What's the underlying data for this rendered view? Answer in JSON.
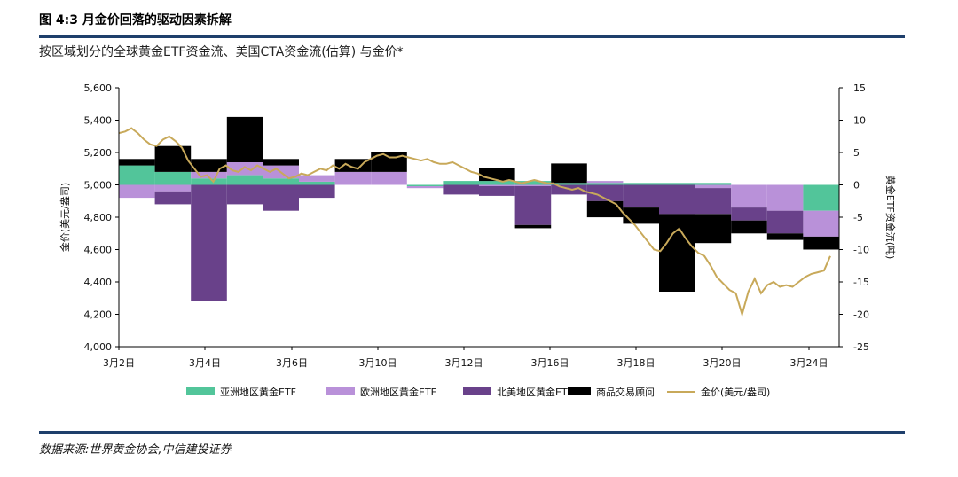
{
  "header": {
    "title": "图 4:3 月金价回落的驱动因素拆解",
    "subtitle": "按区域划分的全球黄金ETF资金流、美国CTA资金流(估算) 与金价*"
  },
  "footer": {
    "source": "数据来源:世界黄金协会,中信建投证券"
  },
  "colors": {
    "asia": "#52c59a",
    "europe": "#b991d9",
    "northamerica": "#69418a",
    "cta": "#000000",
    "gold": "#c8a95a",
    "rule": "#1e3f6b"
  },
  "chart_data": {
    "type": "bar",
    "stacked": true,
    "x_tick_labels": [
      "3月2日",
      "3月4日",
      "3月6日",
      "3月10日",
      "3月12日",
      "3月16日",
      "3月18日",
      "3月20日",
      "3月24日"
    ],
    "left_axis": {
      "label": "金价(美元/盎司)",
      "range": [
        4000,
        5600
      ],
      "ticks": [
        "4,000",
        "4,200",
        "4,400",
        "4,600",
        "4,800",
        "5,000",
        "5,200",
        "5,400",
        "5,600"
      ]
    },
    "right_axis": {
      "label": "黄金ETF资金流(吨)",
      "range": [
        -25,
        15
      ],
      "ticks": [
        "-25",
        "-20",
        "-15",
        "-10",
        "-5",
        "0",
        "5",
        "10",
        "15"
      ]
    },
    "bars_in_tonnes": [
      {
        "asia": 3.0,
        "europe": -2.0,
        "northamerica": 0,
        "cta": 1.0
      },
      {
        "asia": 2.0,
        "europe": -1.0,
        "northamerica": -2.0,
        "cta": 4.0
      },
      {
        "asia": 1.0,
        "europe": 1.0,
        "northamerica": -18.0,
        "cta": 2.0
      },
      {
        "asia": 1.5,
        "europe": 2.0,
        "northamerica": -3.0,
        "cta": 7.0
      },
      {
        "asia": 1.0,
        "europe": 2.0,
        "northamerica": -4.0,
        "cta": 1.0
      },
      {
        "asia": 0.5,
        "europe": 1.0,
        "northamerica": -2.0,
        "cta": 0
      },
      {
        "asia": 0,
        "europe": 2.0,
        "northamerica": 0,
        "cta": 2.0
      },
      {
        "asia": 0,
        "europe": 2.0,
        "northamerica": 0,
        "cta": 3.0
      },
      {
        "asia": -0.2,
        "europe": -0.3,
        "northamerica": 0,
        "cta": 0
      },
      {
        "asia": 0.6,
        "europe": 0,
        "northamerica": -1.5,
        "cta": 0
      },
      {
        "asia": 0.6,
        "europe": -0.2,
        "northamerica": -1.5,
        "cta": 2.0
      },
      {
        "asia": 0.6,
        "europe": -0.2,
        "northamerica": -6.0,
        "cta": -0.5
      },
      {
        "asia": 0.3,
        "europe": 0,
        "northamerica": -1.5,
        "cta": 3.0
      },
      {
        "asia": 0.3,
        "europe": 0.3,
        "northamerica": -2.5,
        "cta": -2.5
      },
      {
        "asia": 0.3,
        "europe": 0,
        "northamerica": -3.5,
        "cta": -2.5
      },
      {
        "asia": 0.3,
        "europe": 0,
        "northamerica": -4.5,
        "cta": -12.0
      },
      {
        "asia": 0.3,
        "europe": -0.5,
        "northamerica": -4.0,
        "cta": -4.5
      },
      {
        "asia": 0,
        "europe": -3.5,
        "northamerica": -2.0,
        "cta": -2.0
      },
      {
        "asia": 0,
        "europe": -4.0,
        "northamerica": -3.5,
        "cta": -1.0
      },
      {
        "asia": -4.0,
        "europe": -4.0,
        "northamerica": 0,
        "cta": -2.0
      }
    ],
    "gold_price": [
      5320,
      5330,
      5350,
      5320,
      5280,
      5250,
      5240,
      5280,
      5300,
      5270,
      5230,
      5150,
      5100,
      5050,
      5060,
      5020,
      5100,
      5120,
      5090,
      5080,
      5110,
      5090,
      5120,
      5100,
      5080,
      5100,
      5070,
      5040,
      5050,
      5070,
      5060,
      5080,
      5100,
      5090,
      5120,
      5100,
      5130,
      5110,
      5100,
      5140,
      5160,
      5180,
      5190,
      5170,
      5170,
      5180,
      5170,
      5160,
      5150,
      5160,
      5140,
      5130,
      5130,
      5140,
      5120,
      5100,
      5080,
      5070,
      5050,
      5040,
      5030,
      5020,
      5030,
      5020,
      5010,
      5020,
      5030,
      5020,
      5010,
      5010,
      4990,
      4980,
      4970,
      4980,
      4960,
      4950,
      4940,
      4920,
      4900,
      4880,
      4830,
      4790,
      4750,
      4700,
      4650,
      4600,
      4590,
      4640,
      4700,
      4730,
      4670,
      4620,
      4580,
      4560,
      4500,
      4430,
      4390,
      4350,
      4330,
      4200,
      4340,
      4420,
      4330,
      4380,
      4400,
      4370,
      4380,
      4370,
      4400,
      4430,
      4450,
      4460,
      4470,
      4560
    ],
    "legend": [
      "亚洲地区黄金ETF",
      "欧洲地区黄金ETF",
      "北美地区黄金ETF",
      "商品交易顾问",
      "金价(美元/盎司)"
    ]
  }
}
